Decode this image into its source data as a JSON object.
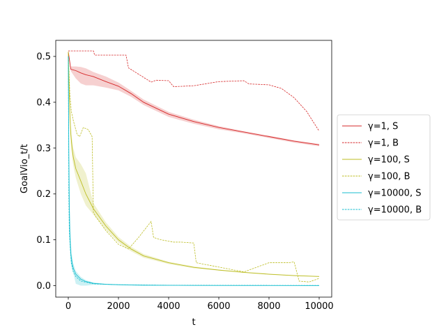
{
  "chart_data": {
    "type": "line",
    "xlabel": "t",
    "ylabel": "GoalVio_t/t",
    "xlim": [
      -500,
      10500
    ],
    "ylim": [
      -0.025,
      0.535
    ],
    "xticks": [
      0,
      2000,
      4000,
      6000,
      8000,
      10000
    ],
    "yticks": [
      0.0,
      0.1,
      0.2,
      0.3,
      0.4,
      0.5
    ],
    "xtick_labels": [
      "0",
      "2000",
      "4000",
      "6000",
      "8000",
      "10000"
    ],
    "ytick_labels": [
      "0.0",
      "0.1",
      "0.2",
      "0.3",
      "0.4",
      "0.5"
    ],
    "grid": false,
    "legend_position": "outside-right",
    "series": [
      {
        "name": "γ=1, S",
        "color": "#d62728",
        "style": "solid",
        "x": [
          0,
          100,
          300,
          500,
          700,
          1000,
          1500,
          2000,
          2500,
          3000,
          4000,
          5000,
          6000,
          7000,
          8000,
          9000,
          10000
        ],
        "y": [
          0.51,
          0.472,
          0.469,
          0.464,
          0.46,
          0.456,
          0.445,
          0.435,
          0.419,
          0.4,
          0.374,
          0.358,
          0.345,
          0.335,
          0.325,
          0.315,
          0.307
        ],
        "band_upper": [
          0.515,
          0.478,
          0.478,
          0.477,
          0.474,
          0.466,
          0.456,
          0.443,
          0.425,
          0.406,
          0.379,
          0.362,
          0.348,
          0.337,
          0.327,
          0.317,
          0.309
        ],
        "band_lower": [
          0.505,
          0.468,
          0.452,
          0.441,
          0.437,
          0.437,
          0.432,
          0.426,
          0.412,
          0.394,
          0.368,
          0.353,
          0.341,
          0.332,
          0.322,
          0.312,
          0.304
        ]
      },
      {
        "name": "γ=1, B",
        "color": "#d62728",
        "style": "dashed",
        "x": [
          0,
          200,
          1000,
          1050,
          2300,
          2400,
          3300,
          3500,
          4000,
          4200,
          5000,
          6000,
          7000,
          7200,
          8000,
          8500,
          9000,
          9500,
          10000
        ],
        "y": [
          0.512,
          0.512,
          0.512,
          0.503,
          0.503,
          0.475,
          0.444,
          0.448,
          0.447,
          0.434,
          0.436,
          0.445,
          0.447,
          0.44,
          0.438,
          0.43,
          0.41,
          0.38,
          0.337
        ]
      },
      {
        "name": "γ=100, S",
        "color": "#bcbd22",
        "style": "solid",
        "x": [
          0,
          30,
          60,
          100,
          150,
          200,
          300,
          500,
          700,
          1000,
          1500,
          2000,
          2500,
          3000,
          4000,
          5000,
          6000,
          7000,
          8000,
          9000,
          10000
        ],
        "y": [
          0.51,
          0.44,
          0.38,
          0.33,
          0.3,
          0.28,
          0.255,
          0.228,
          0.2,
          0.168,
          0.13,
          0.1,
          0.08,
          0.065,
          0.05,
          0.04,
          0.034,
          0.029,
          0.025,
          0.022,
          0.02
        ],
        "band_upper": [
          0.515,
          0.46,
          0.4,
          0.35,
          0.32,
          0.3,
          0.28,
          0.265,
          0.245,
          0.18,
          0.138,
          0.106,
          0.085,
          0.069,
          0.052,
          0.042,
          0.035,
          0.03,
          0.026,
          0.023,
          0.021
        ],
        "band_lower": [
          0.505,
          0.42,
          0.36,
          0.31,
          0.28,
          0.262,
          0.235,
          0.2,
          0.175,
          0.155,
          0.122,
          0.094,
          0.075,
          0.061,
          0.047,
          0.038,
          0.033,
          0.028,
          0.024,
          0.021,
          0.019
        ]
      },
      {
        "name": "γ=100, B",
        "color": "#bcbd22",
        "style": "dashed",
        "x": [
          0,
          60,
          120,
          200,
          350,
          450,
          600,
          800,
          950,
          1000,
          1100,
          1500,
          2000,
          2400,
          2800,
          3300,
          3400,
          3700,
          4200,
          4500,
          5000,
          5100,
          7000,
          8000,
          8200,
          8800,
          9000,
          9200,
          9600,
          10000
        ],
        "y": [
          0.51,
          0.42,
          0.38,
          0.36,
          0.33,
          0.325,
          0.345,
          0.34,
          0.325,
          0.16,
          0.15,
          0.12,
          0.09,
          0.08,
          0.105,
          0.14,
          0.105,
          0.1,
          0.095,
          0.095,
          0.093,
          0.05,
          0.03,
          0.05,
          0.05,
          0.05,
          0.052,
          0.01,
          0.008,
          0.016
        ]
      },
      {
        "name": "γ=10000, S",
        "color": "#17becf",
        "style": "solid",
        "x": [
          0,
          10,
          20,
          40,
          60,
          100,
          150,
          200,
          300,
          500,
          700,
          1000,
          1500,
          2000,
          3000,
          5000,
          7000,
          10000
        ],
        "y": [
          0.5,
          0.4,
          0.3,
          0.18,
          0.12,
          0.07,
          0.05,
          0.038,
          0.025,
          0.014,
          0.009,
          0.005,
          0.003,
          0.002,
          0.001,
          0.0005,
          0.0003,
          0.0002
        ],
        "band_upper": [
          0.51,
          0.45,
          0.35,
          0.22,
          0.15,
          0.09,
          0.065,
          0.048,
          0.032,
          0.019,
          0.012,
          0.007,
          0.004,
          0.003,
          0.0015,
          0.0008,
          0.0005,
          0.0004
        ],
        "band_lower": [
          0.49,
          0.35,
          0.25,
          0.14,
          0.09,
          0.05,
          0.035,
          0.028,
          0.004,
          0.0,
          0.0,
          0.002,
          0.0015,
          0.001,
          0.0005,
          0.0002,
          0.0001,
          0.0
        ]
      },
      {
        "name": "γ=10000, B",
        "color": "#17becf",
        "style": "dashed",
        "x": [
          0,
          20,
          40,
          80,
          120,
          200,
          300,
          500,
          1000,
          2000,
          4000,
          10000
        ],
        "y": [
          0.5,
          0.2,
          0.12,
          0.08,
          0.05,
          0.03,
          0.02,
          0.01,
          0.004,
          0.002,
          0.001,
          0.0005
        ]
      }
    ]
  }
}
